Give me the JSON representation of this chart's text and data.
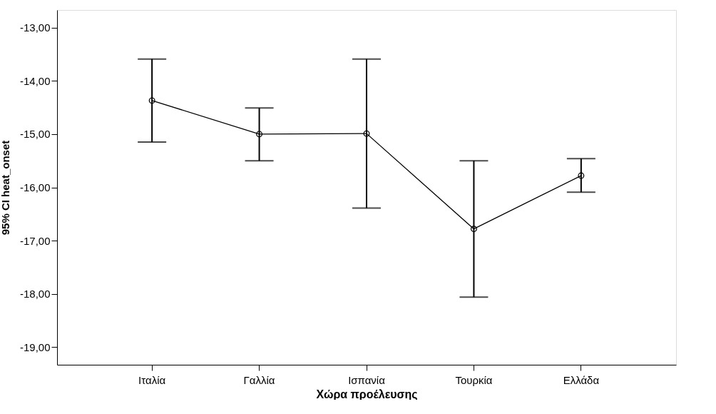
{
  "chart_data": {
    "type": "line",
    "xlabel": "Χώρα προέλευσης",
    "ylabel": "95% CI heat_onset",
    "categories": [
      "Ιταλία",
      "Γαλλία",
      "Ισπανία",
      "Τουρκία",
      "Ελλάδα"
    ],
    "series": [
      {
        "color": "#000000",
        "values": [
          -14.37,
          -15.0,
          -14.99,
          -16.78,
          -15.78
        ],
        "errors": [
          [
            -15.15,
            -13.59
          ],
          [
            -15.5,
            -14.51
          ],
          [
            -16.39,
            -13.59
          ],
          [
            -18.06,
            -15.5
          ],
          [
            -16.09,
            -15.46
          ]
        ]
      }
    ],
    "ylim": [
      -19.33,
      -12.67
    ],
    "yticks": [
      {
        "value": -19,
        "label": "-19,00"
      },
      {
        "value": -18,
        "label": "-18,00"
      },
      {
        "value": -17,
        "label": "-17,00"
      },
      {
        "value": -16,
        "label": "-16,00"
      },
      {
        "value": -15,
        "label": "-15,00"
      },
      {
        "value": -14,
        "label": "-14,00"
      },
      {
        "value": -13,
        "label": "-13,00"
      }
    ],
    "grid": false,
    "marker": "circle",
    "line_style": "solid"
  }
}
